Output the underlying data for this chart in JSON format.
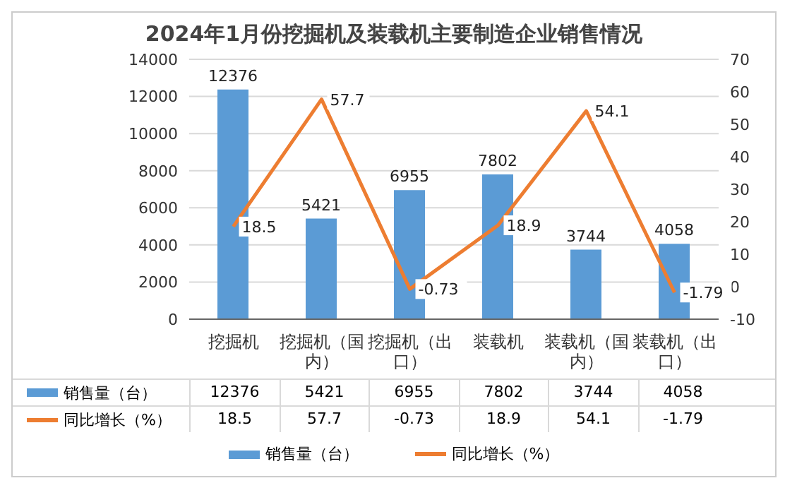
{
  "chart_data": {
    "type": "bar",
    "title": "2024年1月份挖掘机及装载机主要制造企业销售情况",
    "categories": [
      "挖掘机",
      "挖掘机（国内）",
      "挖掘机（出口）",
      "装载机",
      "装载机（国内）",
      "装载机（出口）"
    ],
    "series": [
      {
        "name": "销售量（台）",
        "color": "#5b9bd5",
        "values": [
          12376,
          5421,
          6955,
          7802,
          3744,
          4058
        ],
        "value_labels": [
          "12376",
          "5421",
          "6955",
          "7802",
          "3744",
          "4058"
        ]
      },
      {
        "name": "同比增长（%）",
        "type": "line",
        "axis": "y2",
        "color": "#ed7d31",
        "marker": "none",
        "values": [
          18.5,
          57.7,
          -0.73,
          18.9,
          54.1,
          -1.79
        ],
        "value_labels": [
          "18.5",
          "57.7",
          "-0.73",
          "18.9",
          "54.1",
          "-1.79"
        ]
      }
    ],
    "ylim": [
      0,
      14000
    ],
    "yticks": [
      0,
      2000,
      4000,
      6000,
      8000,
      10000,
      12000,
      14000
    ],
    "y2lim": [
      -10,
      70
    ],
    "y2ticks": [
      -10,
      0,
      10,
      20,
      30,
      40,
      50,
      60,
      70
    ],
    "grid": "y",
    "legend": "bottom"
  }
}
